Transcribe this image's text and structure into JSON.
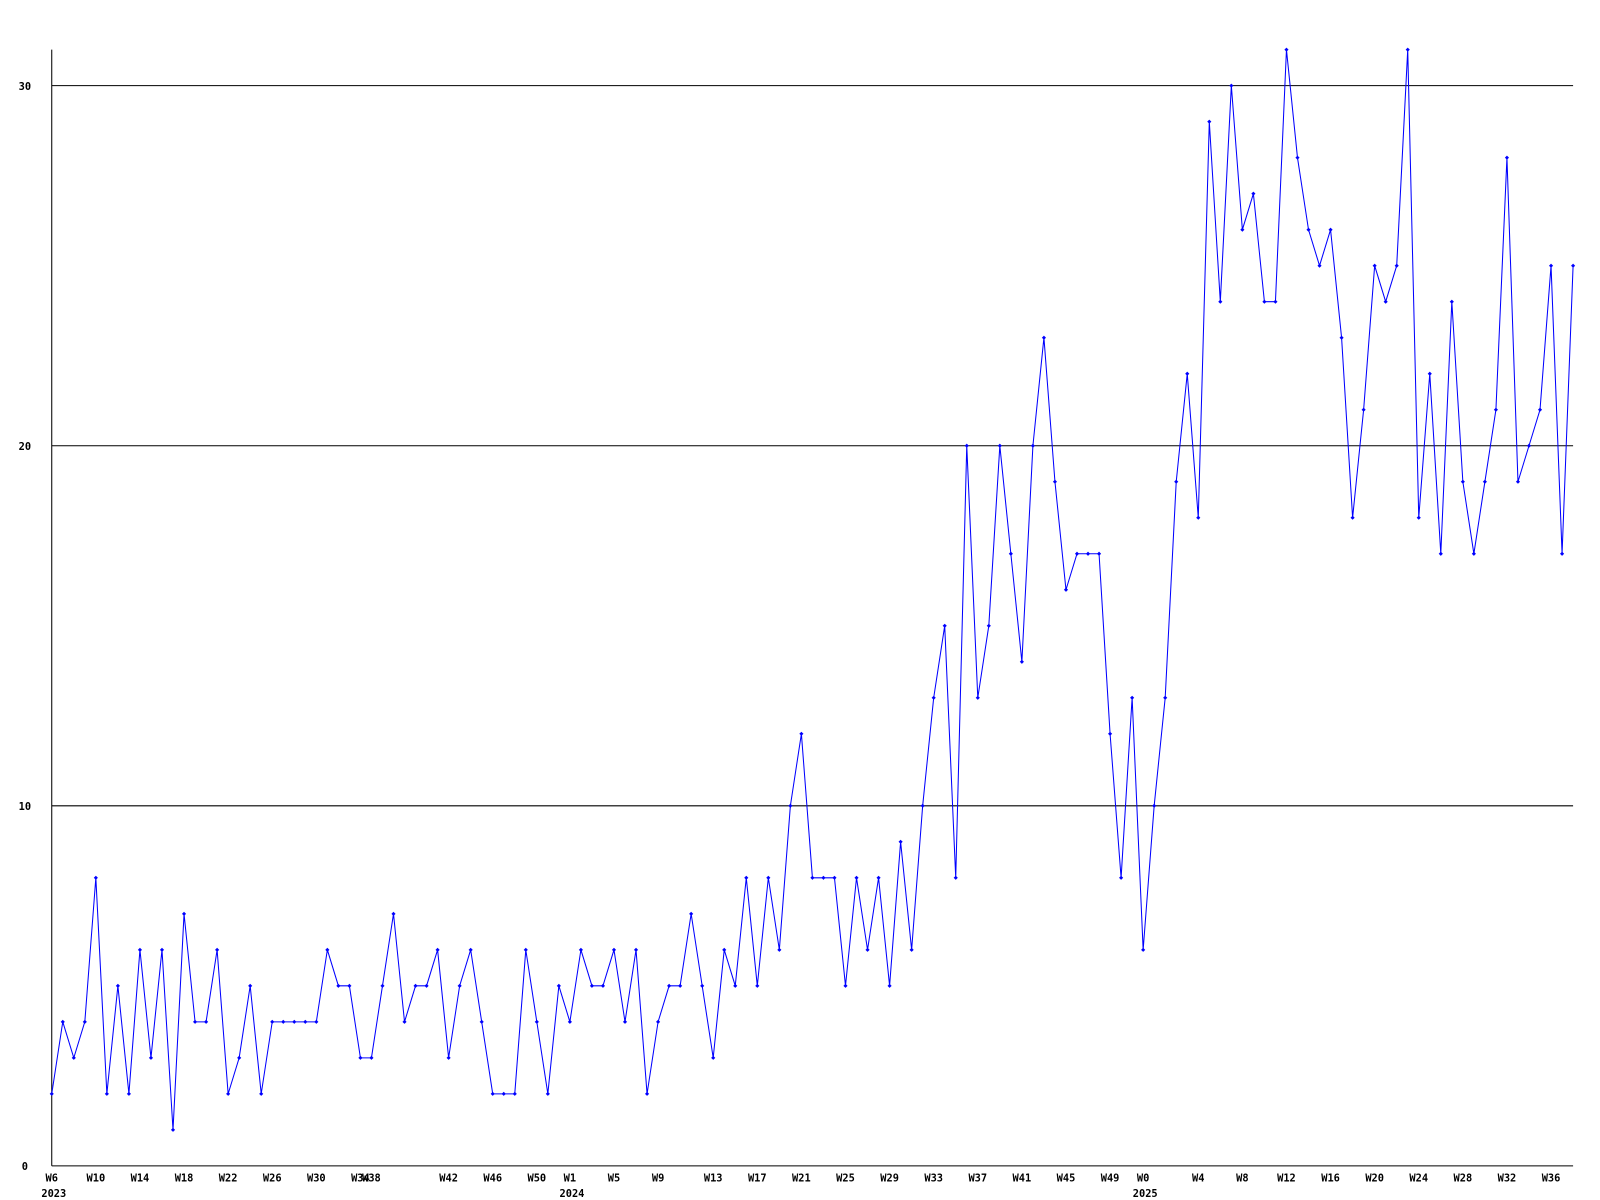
{
  "chart_data": {
    "type": "line",
    "categories": [
      "W6",
      null,
      null,
      null,
      "W10",
      null,
      null,
      null,
      "W14",
      null,
      null,
      null,
      "W18",
      null,
      null,
      null,
      "W22",
      null,
      null,
      null,
      "W26",
      null,
      null,
      null,
      "W30",
      null,
      null,
      null,
      "W34",
      "W38",
      null,
      null,
      null,
      null,
      null,
      null,
      "W42",
      null,
      null,
      null,
      "W46",
      null,
      null,
      null,
      "W50",
      null,
      null,
      "W1",
      null,
      null,
      null,
      "W5",
      null,
      null,
      null,
      "W9",
      null,
      null,
      null,
      null,
      "W13",
      null,
      null,
      null,
      "W17",
      null,
      null,
      null,
      "W21",
      null,
      null,
      null,
      "W25",
      null,
      null,
      null,
      "W29",
      null,
      null,
      null,
      "W33",
      null,
      null,
      null,
      "W37",
      null,
      null,
      null,
      "W41",
      null,
      null,
      null,
      "W45",
      null,
      null,
      null,
      "W49",
      null,
      null,
      "W0",
      null,
      null,
      null,
      null,
      "W4",
      null,
      null,
      null,
      "W8",
      null,
      null,
      null,
      "W12",
      null,
      null,
      null,
      "W16",
      null,
      null,
      null,
      "W20",
      null,
      null,
      null,
      "W24",
      null,
      null,
      null,
      "W28",
      null,
      null,
      null,
      "W32",
      null,
      null,
      null,
      "W36",
      null,
      null
    ],
    "x_sublabels": [
      "2023",
      null,
      null,
      null,
      null,
      null,
      null,
      null,
      null,
      null,
      null,
      null,
      null,
      null,
      null,
      null,
      null,
      null,
      null,
      null,
      null,
      null,
      null,
      null,
      null,
      null,
      null,
      null,
      null,
      null,
      null,
      null,
      null,
      null,
      null,
      null,
      null,
      null,
      null,
      null,
      null,
      null,
      null,
      null,
      null,
      null,
      null,
      "2024",
      null,
      null,
      null,
      null,
      null,
      null,
      null,
      null,
      null,
      null,
      null,
      null,
      null,
      null,
      null,
      null,
      null,
      null,
      null,
      null,
      null,
      null,
      null,
      null,
      null,
      null,
      null,
      null,
      null,
      null,
      null,
      null,
      null,
      null,
      null,
      null,
      null,
      null,
      null,
      null,
      null,
      null,
      null,
      null,
      null,
      null,
      null,
      null,
      null,
      null,
      null,
      "2025",
      null,
      null,
      null,
      null,
      null,
      null,
      null,
      null,
      null,
      null,
      null,
      null,
      null,
      null,
      null,
      null,
      null,
      null,
      null,
      null,
      null,
      null,
      null,
      null,
      null,
      null,
      null,
      null,
      null,
      null,
      null,
      null,
      null,
      null,
      null,
      null,
      null,
      null,
      null
    ],
    "series": [
      {
        "color": "#0000ff",
        "values": [
          2,
          4,
          3,
          4,
          8,
          2,
          5,
          2,
          6,
          3,
          6,
          1,
          7,
          4,
          4,
          6,
          2,
          3,
          5,
          2,
          4,
          4,
          4,
          4,
          4,
          6,
          5,
          5,
          3,
          3,
          5,
          7,
          4,
          5,
          5,
          6,
          3,
          5,
          6,
          4,
          2,
          2,
          2,
          6,
          4,
          2,
          5,
          4,
          6,
          5,
          5,
          6,
          4,
          6,
          2,
          4,
          5,
          5,
          7,
          5,
          3,
          6,
          5,
          8,
          5,
          8,
          6,
          10,
          12,
          8,
          8,
          8,
          5,
          8,
          6,
          8,
          5,
          9,
          6,
          10,
          13,
          15,
          8,
          20,
          13,
          15,
          20,
          17,
          14,
          20,
          23,
          19,
          16,
          17,
          17,
          17,
          12,
          8,
          13,
          6,
          10,
          13,
          19,
          22,
          18,
          29,
          24,
          30,
          26,
          27,
          24,
          24,
          31,
          28,
          26,
          25,
          26,
          23,
          18,
          21,
          25,
          24,
          25,
          31,
          18,
          22,
          17,
          24,
          19,
          17,
          19,
          21,
          28,
          19,
          20,
          21,
          25,
          17,
          25
        ]
      }
    ],
    "ylim": [
      0,
      31
    ],
    "yticks": [
      0,
      10,
      20,
      30
    ],
    "grid": true
  }
}
